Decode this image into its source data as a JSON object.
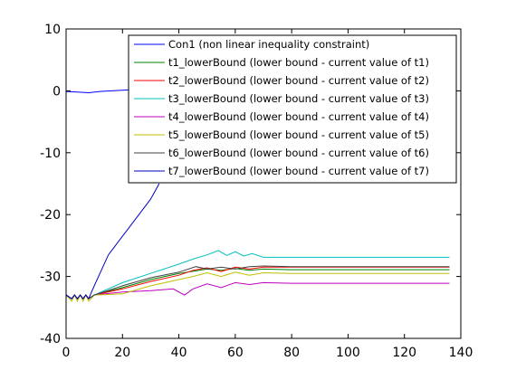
{
  "chart_data": {
    "type": "line",
    "xlim": [
      0,
      140
    ],
    "ylim": [
      -40,
      10
    ],
    "x_ticks": [
      0,
      20,
      40,
      60,
      80,
      100,
      120,
      140
    ],
    "y_ticks": [
      10,
      0,
      -10,
      -20,
      -30,
      -40
    ],
    "grid": false,
    "legend_position": "top-right",
    "series": [
      {
        "name": "Con1 (non linear inequality constraint)",
        "color": "#0000ff",
        "points": [
          [
            0,
            -0.1
          ],
          [
            4,
            -0.2
          ],
          [
            8,
            -0.3
          ],
          [
            12,
            -0.1
          ],
          [
            16,
            0.0
          ],
          [
            20,
            0.1
          ],
          [
            24,
            0.2
          ],
          [
            28,
            0.1
          ],
          [
            32,
            0.2
          ],
          [
            36,
            0.2
          ],
          [
            40,
            0.3
          ],
          [
            44,
            0.3
          ],
          [
            48,
            0.3
          ]
        ]
      },
      {
        "name": "t1_lowerBound (lower bound - current value of t1)",
        "color": "#008000",
        "points": [
          [
            0,
            -33.0
          ],
          [
            2,
            -33.6
          ],
          [
            3,
            -33.0
          ],
          [
            4,
            -33.6
          ],
          [
            5,
            -33.0
          ],
          [
            6,
            -33.6
          ],
          [
            7,
            -33.0
          ],
          [
            8,
            -33.6
          ],
          [
            10,
            -33.0
          ],
          [
            20,
            -31.8
          ],
          [
            30,
            -30.5
          ],
          [
            40,
            -29.5
          ],
          [
            50,
            -28.8
          ],
          [
            55,
            -29.0
          ],
          [
            60,
            -28.7
          ],
          [
            65,
            -29.0
          ],
          [
            70,
            -28.8
          ],
          [
            80,
            -28.9
          ],
          [
            100,
            -28.9
          ],
          [
            120,
            -28.9
          ],
          [
            136,
            -28.9
          ]
        ]
      },
      {
        "name": "t2_lowerBound (lower bound - current value of t2)",
        "color": "#ff0000",
        "points": [
          [
            0,
            -33.0
          ],
          [
            2,
            -33.6
          ],
          [
            3,
            -33.0
          ],
          [
            4,
            -33.6
          ],
          [
            5,
            -33.0
          ],
          [
            6,
            -33.6
          ],
          [
            7,
            -33.0
          ],
          [
            8,
            -33.6
          ],
          [
            10,
            -33.0
          ],
          [
            20,
            -32.0
          ],
          [
            30,
            -30.8
          ],
          [
            40,
            -29.8
          ],
          [
            45,
            -29.0
          ],
          [
            50,
            -28.6
          ],
          [
            55,
            -29.2
          ],
          [
            60,
            -28.5
          ],
          [
            65,
            -28.8
          ],
          [
            70,
            -28.5
          ],
          [
            80,
            -28.5
          ],
          [
            100,
            -28.5
          ],
          [
            120,
            -28.5
          ],
          [
            136,
            -28.5
          ]
        ]
      },
      {
        "name": "t3_lowerBound (lower bound - current value of t3)",
        "color": "#00bfbf",
        "points": [
          [
            0,
            -33.0
          ],
          [
            2,
            -33.6
          ],
          [
            3,
            -33.0
          ],
          [
            4,
            -33.6
          ],
          [
            5,
            -33.0
          ],
          [
            6,
            -33.6
          ],
          [
            7,
            -33.0
          ],
          [
            8,
            -33.6
          ],
          [
            10,
            -33.0
          ],
          [
            20,
            -31.0
          ],
          [
            30,
            -29.5
          ],
          [
            40,
            -28.0
          ],
          [
            45,
            -27.2
          ],
          [
            50,
            -26.5
          ],
          [
            54,
            -25.8
          ],
          [
            57,
            -26.6
          ],
          [
            60,
            -26.0
          ],
          [
            63,
            -26.7
          ],
          [
            66,
            -26.3
          ],
          [
            70,
            -26.9
          ],
          [
            80,
            -26.9
          ],
          [
            100,
            -26.9
          ],
          [
            120,
            -26.9
          ],
          [
            136,
            -26.9
          ]
        ]
      },
      {
        "name": "t4_lowerBound (lower bound - current value of t4)",
        "color": "#bf00bf",
        "points": [
          [
            0,
            -33.0
          ],
          [
            2,
            -33.6
          ],
          [
            3,
            -33.0
          ],
          [
            4,
            -33.6
          ],
          [
            5,
            -33.0
          ],
          [
            6,
            -33.6
          ],
          [
            7,
            -33.0
          ],
          [
            8,
            -33.6
          ],
          [
            10,
            -33.0
          ],
          [
            20,
            -32.5
          ],
          [
            30,
            -32.3
          ],
          [
            38,
            -32.0
          ],
          [
            42,
            -33.0
          ],
          [
            45,
            -32.0
          ],
          [
            50,
            -31.2
          ],
          [
            55,
            -31.8
          ],
          [
            60,
            -31.0
          ],
          [
            65,
            -31.3
          ],
          [
            70,
            -31.0
          ],
          [
            80,
            -31.1
          ],
          [
            100,
            -31.1
          ],
          [
            120,
            -31.1
          ],
          [
            136,
            -31.1
          ]
        ]
      },
      {
        "name": "t5_lowerBound (lower bound - current value of t5)",
        "color": "#bfbf00",
        "points": [
          [
            0,
            -33.0
          ],
          [
            2,
            -34.0
          ],
          [
            3,
            -33.0
          ],
          [
            4,
            -34.0
          ],
          [
            5,
            -33.0
          ],
          [
            6,
            -34.0
          ],
          [
            7,
            -33.0
          ],
          [
            8,
            -34.0
          ],
          [
            10,
            -33.0
          ],
          [
            20,
            -32.8
          ],
          [
            30,
            -31.5
          ],
          [
            40,
            -30.5
          ],
          [
            45,
            -30.0
          ],
          [
            50,
            -29.4
          ],
          [
            55,
            -30.0
          ],
          [
            60,
            -29.3
          ],
          [
            65,
            -29.8
          ],
          [
            70,
            -29.4
          ],
          [
            80,
            -29.5
          ],
          [
            100,
            -29.5
          ],
          [
            120,
            -29.5
          ],
          [
            136,
            -29.5
          ]
        ]
      },
      {
        "name": "t6_lowerBound (lower bound - current value of t6)",
        "color": "#404040",
        "points": [
          [
            0,
            -33.0
          ],
          [
            2,
            -33.6
          ],
          [
            3,
            -33.0
          ],
          [
            4,
            -33.6
          ],
          [
            5,
            -33.0
          ],
          [
            6,
            -33.6
          ],
          [
            7,
            -33.0
          ],
          [
            8,
            -33.6
          ],
          [
            10,
            -33.0
          ],
          [
            20,
            -31.5
          ],
          [
            30,
            -30.2
          ],
          [
            40,
            -29.3
          ],
          [
            46,
            -28.4
          ],
          [
            50,
            -28.8
          ],
          [
            55,
            -28.5
          ],
          [
            60,
            -28.8
          ],
          [
            65,
            -28.4
          ],
          [
            70,
            -28.3
          ],
          [
            80,
            -28.4
          ],
          [
            100,
            -28.4
          ],
          [
            120,
            -28.4
          ],
          [
            136,
            -28.4
          ]
        ]
      },
      {
        "name": "t7_lowerBound (lower bound - current value of t7)",
        "color": "#0000bf",
        "points": [
          [
            0,
            -33.0
          ],
          [
            2,
            -33.6
          ],
          [
            3,
            -33.0
          ],
          [
            4,
            -33.6
          ],
          [
            5,
            -33.0
          ],
          [
            6,
            -33.6
          ],
          [
            7,
            -33.0
          ],
          [
            8,
            -33.6
          ],
          [
            10,
            -31.5
          ],
          [
            15,
            -26.5
          ],
          [
            20,
            -23.5
          ],
          [
            25,
            -20.5
          ],
          [
            30,
            -17.5
          ],
          [
            33,
            -15.0
          ]
        ]
      }
    ]
  }
}
